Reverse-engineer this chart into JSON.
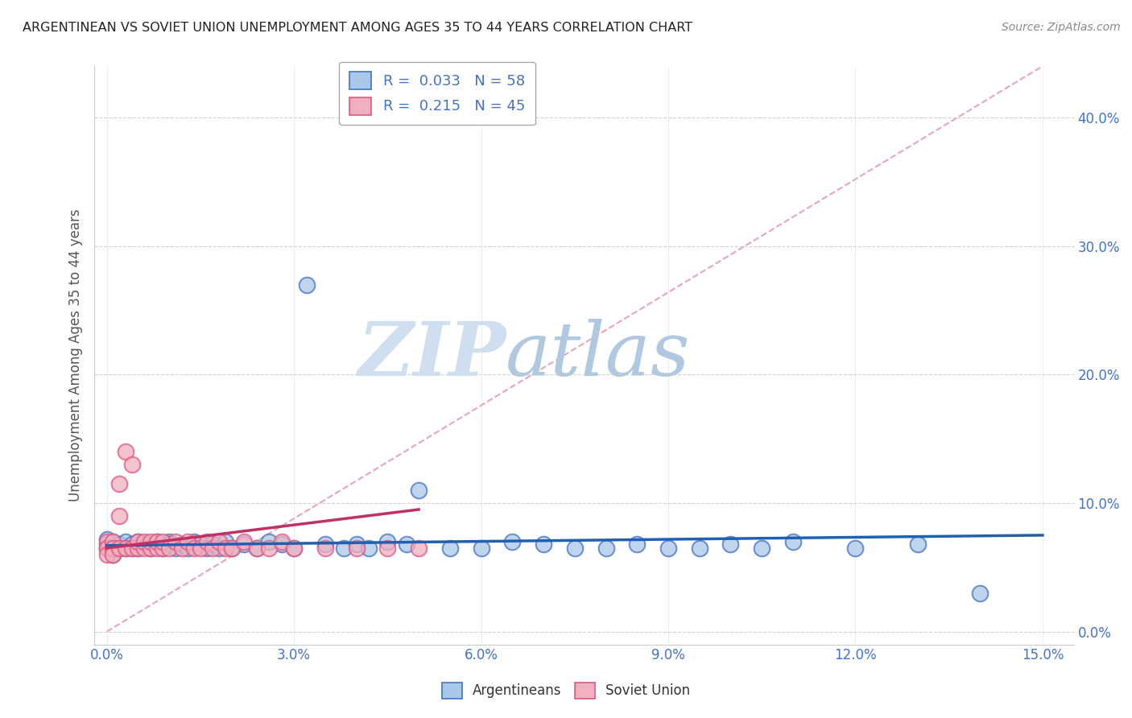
{
  "title": "ARGENTINEAN VS SOVIET UNION UNEMPLOYMENT AMONG AGES 35 TO 44 YEARS CORRELATION CHART",
  "source": "Source: ZipAtlas.com",
  "ylabel": "Unemployment Among Ages 35 to 44 years",
  "xlim": [
    -0.002,
    0.155
  ],
  "ylim": [
    -0.01,
    0.44
  ],
  "xticks": [
    0.0,
    0.03,
    0.06,
    0.09,
    0.12,
    0.15
  ],
  "xticklabels": [
    "0.0%",
    "3.0%",
    "6.0%",
    "9.0%",
    "12.0%",
    "15.0%"
  ],
  "yticks": [
    0.0,
    0.1,
    0.2,
    0.3,
    0.4
  ],
  "yticklabels": [
    "0.0%",
    "10.0%",
    "20.0%",
    "30.0%",
    "40.0%"
  ],
  "legend_r1": "R =  0.033",
  "legend_n1": "N = 58",
  "legend_r2": "R =  0.215",
  "legend_n2": "N = 45",
  "color_blue": "#a8c8e8",
  "color_pink": "#f0b0c0",
  "color_blue_dark": "#4472c4",
  "color_pink_dark": "#e05880",
  "color_trend_blue": "#2060b0",
  "color_trend_pink": "#c03060",
  "color_diag": "#e090a0",
  "watermark_zip": "ZIP",
  "watermark_atlas": "atlas",
  "watermark_color_zip": "#d0dff0",
  "watermark_color_atlas": "#b0c8e0",
  "background_color": "#ffffff",
  "grid_color": "#cccccc",
  "argentineans_x": [
    0.0,
    0.0,
    0.0,
    0.001,
    0.001,
    0.001,
    0.002,
    0.002,
    0.003,
    0.003,
    0.004,
    0.004,
    0.005,
    0.005,
    0.006,
    0.007,
    0.008,
    0.009,
    0.01,
    0.01,
    0.011,
    0.012,
    0.013,
    0.014,
    0.015,
    0.016,
    0.017,
    0.018,
    0.019,
    0.02,
    0.022,
    0.024,
    0.026,
    0.028,
    0.03,
    0.032,
    0.035,
    0.038,
    0.04,
    0.042,
    0.045,
    0.048,
    0.05,
    0.055,
    0.06,
    0.065,
    0.07,
    0.075,
    0.08,
    0.085,
    0.09,
    0.095,
    0.1,
    0.105,
    0.11,
    0.12,
    0.13,
    0.14
  ],
  "argentineans_y": [
    0.068,
    0.072,
    0.065,
    0.07,
    0.065,
    0.06,
    0.068,
    0.065,
    0.07,
    0.065,
    0.068,
    0.065,
    0.07,
    0.065,
    0.068,
    0.065,
    0.07,
    0.065,
    0.07,
    0.068,
    0.065,
    0.068,
    0.065,
    0.07,
    0.068,
    0.065,
    0.068,
    0.065,
    0.07,
    0.065,
    0.068,
    0.065,
    0.07,
    0.068,
    0.065,
    0.27,
    0.068,
    0.065,
    0.068,
    0.065,
    0.07,
    0.068,
    0.11,
    0.065,
    0.065,
    0.07,
    0.068,
    0.065,
    0.065,
    0.068,
    0.065,
    0.065,
    0.068,
    0.065,
    0.07,
    0.065,
    0.068,
    0.03
  ],
  "soviet_x": [
    0.0,
    0.0,
    0.0,
    0.0,
    0.001,
    0.001,
    0.001,
    0.001,
    0.002,
    0.002,
    0.002,
    0.003,
    0.003,
    0.004,
    0.004,
    0.005,
    0.005,
    0.006,
    0.006,
    0.007,
    0.007,
    0.008,
    0.008,
    0.009,
    0.009,
    0.01,
    0.011,
    0.012,
    0.013,
    0.014,
    0.015,
    0.016,
    0.017,
    0.018,
    0.019,
    0.02,
    0.022,
    0.024,
    0.026,
    0.028,
    0.03,
    0.035,
    0.04,
    0.045,
    0.05
  ],
  "soviet_y": [
    0.065,
    0.07,
    0.065,
    0.06,
    0.065,
    0.07,
    0.065,
    0.06,
    0.065,
    0.115,
    0.09,
    0.065,
    0.14,
    0.065,
    0.13,
    0.065,
    0.07,
    0.065,
    0.07,
    0.065,
    0.07,
    0.065,
    0.07,
    0.065,
    0.07,
    0.065,
    0.07,
    0.065,
    0.07,
    0.065,
    0.065,
    0.07,
    0.065,
    0.07,
    0.065,
    0.065,
    0.07,
    0.065,
    0.065,
    0.07,
    0.065,
    0.065,
    0.065,
    0.065,
    0.065
  ]
}
